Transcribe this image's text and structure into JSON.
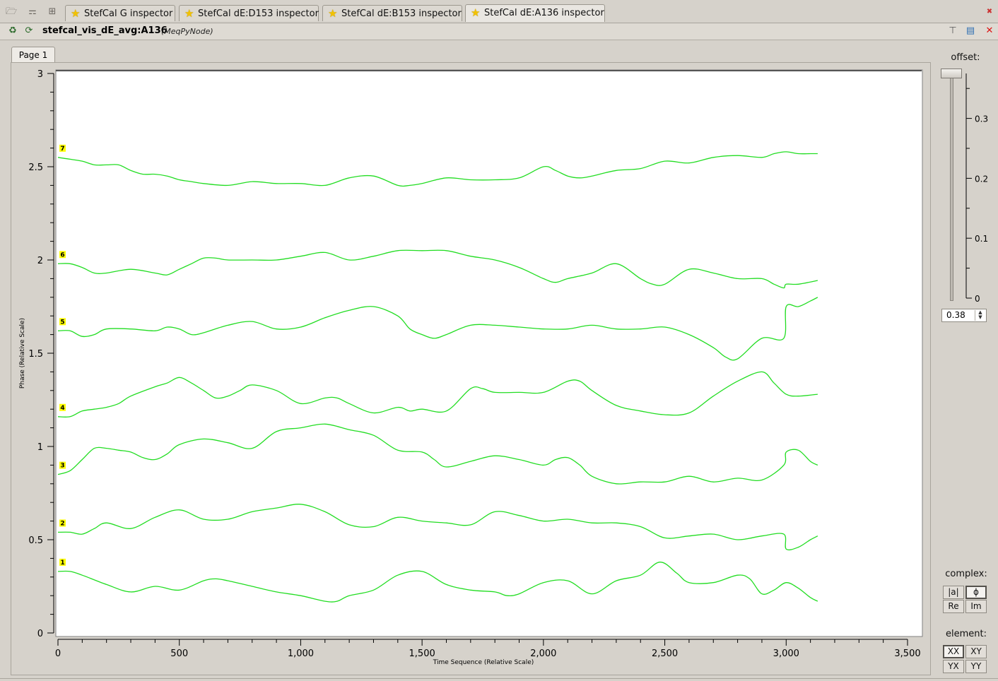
{
  "toolbar": {
    "icons": [
      "folder-icon",
      "bookmark-icon",
      "grid-icon"
    ],
    "tabs": [
      {
        "label": "StefCal G inspector",
        "icon": "star-icon"
      },
      {
        "label": "StefCal dE:D153 inspector",
        "icon": "star-icon"
      },
      {
        "label": "StefCal dE:B153 inspector",
        "icon": "star-icon"
      },
      {
        "label": "StefCal dE:A136 inspector",
        "icon": "star-icon",
        "active": true
      }
    ]
  },
  "titlebar": {
    "node_name": "stefcal_vis_dE_avg:A136",
    "node_class": "(MeqPyNode)"
  },
  "page_tab": "Page 1",
  "right_panel": {
    "offset_label": "offset:",
    "offset_value": "0.38",
    "offset_fraction": 1.0,
    "offset_ticks": [
      "0.3",
      "0.2",
      "0.1",
      "0"
    ],
    "complex_label": "complex:",
    "complex_buttons": [
      "|a|",
      "ϕ",
      "Re",
      "Im"
    ],
    "complex_selected": "ϕ",
    "element_label": "element:",
    "element_buttons": [
      "XX",
      "XY",
      "YX",
      "YY"
    ],
    "element_selected": "XX"
  },
  "chart_data": {
    "type": "line",
    "xlabel": "Time Sequence (Relative Scale)",
    "ylabel": "Phase (Relative Scale)",
    "xlim": [
      -10,
      3550
    ],
    "ylim": [
      -0.01,
      3.02
    ],
    "xticks": [
      "0",
      "500",
      "1,000",
      "1,500",
      "2,000",
      "2,500",
      "3,000",
      "3,500"
    ],
    "yticks": [
      "0",
      "0.5",
      "1",
      "1.5",
      "2",
      "2.5",
      "3"
    ],
    "grid": false,
    "line_color": "#22dd22",
    "series": [
      {
        "name": "1",
        "x": [
          0,
          50,
          100,
          200,
          300,
          400,
          500,
          600,
          650,
          700,
          800,
          900,
          1000,
          1100,
          1150,
          1200,
          1300,
          1400,
          1500,
          1600,
          1700,
          1800,
          1850,
          1900,
          2000,
          2100,
          2200,
          2300,
          2400,
          2480,
          2550,
          2600,
          2700,
          2800,
          2850,
          2900,
          2950,
          3000,
          3050,
          3100,
          3130
        ],
        "y": [
          0.33,
          0.33,
          0.31,
          0.26,
          0.22,
          0.25,
          0.23,
          0.28,
          0.29,
          0.28,
          0.25,
          0.22,
          0.2,
          0.17,
          0.17,
          0.2,
          0.23,
          0.31,
          0.33,
          0.26,
          0.23,
          0.22,
          0.2,
          0.21,
          0.27,
          0.28,
          0.21,
          0.28,
          0.31,
          0.38,
          0.32,
          0.27,
          0.27,
          0.31,
          0.29,
          0.21,
          0.23,
          0.27,
          0.24,
          0.19,
          0.17
        ]
      },
      {
        "name": "2",
        "x": [
          0,
          50,
          100,
          150,
          200,
          300,
          400,
          500,
          600,
          700,
          800,
          900,
          1000,
          1100,
          1200,
          1300,
          1400,
          1500,
          1600,
          1700,
          1800,
          1900,
          2000,
          2100,
          2200,
          2300,
          2400,
          2500,
          2600,
          2700,
          2800,
          2900,
          2990,
          3000,
          3050,
          3100,
          3130
        ],
        "y": [
          0.54,
          0.54,
          0.53,
          0.56,
          0.59,
          0.56,
          0.62,
          0.66,
          0.61,
          0.61,
          0.65,
          0.67,
          0.69,
          0.65,
          0.58,
          0.57,
          0.62,
          0.6,
          0.59,
          0.58,
          0.65,
          0.63,
          0.6,
          0.61,
          0.59,
          0.59,
          0.57,
          0.51,
          0.52,
          0.53,
          0.5,
          0.52,
          0.53,
          0.45,
          0.46,
          0.5,
          0.52
        ]
      },
      {
        "name": "3",
        "x": [
          0,
          50,
          100,
          150,
          200,
          250,
          300,
          350,
          400,
          450,
          500,
          600,
          700,
          800,
          900,
          1000,
          1100,
          1200,
          1300,
          1400,
          1500,
          1550,
          1600,
          1700,
          1800,
          1900,
          2000,
          2050,
          2100,
          2150,
          2200,
          2300,
          2400,
          2500,
          2600,
          2700,
          2800,
          2900,
          2990,
          3000,
          3050,
          3100,
          3130
        ],
        "y": [
          0.85,
          0.87,
          0.93,
          0.99,
          0.99,
          0.98,
          0.97,
          0.94,
          0.93,
          0.96,
          1.01,
          1.04,
          1.02,
          0.99,
          1.08,
          1.1,
          1.12,
          1.09,
          1.06,
          0.98,
          0.97,
          0.93,
          0.89,
          0.92,
          0.95,
          0.93,
          0.9,
          0.93,
          0.94,
          0.9,
          0.84,
          0.8,
          0.81,
          0.81,
          0.84,
          0.81,
          0.83,
          0.82,
          0.9,
          0.97,
          0.98,
          0.92,
          0.9
        ]
      },
      {
        "name": "4",
        "x": [
          0,
          50,
          100,
          150,
          200,
          250,
          300,
          400,
          450,
          500,
          550,
          600,
          650,
          700,
          750,
          800,
          900,
          1000,
          1100,
          1150,
          1200,
          1300,
          1400,
          1450,
          1500,
          1600,
          1700,
          1750,
          1800,
          1900,
          2000,
          2100,
          2150,
          2200,
          2300,
          2400,
          2500,
          2600,
          2700,
          2800,
          2900,
          2950,
          3000,
          3050,
          3130
        ],
        "y": [
          1.16,
          1.16,
          1.19,
          1.2,
          1.21,
          1.23,
          1.27,
          1.32,
          1.34,
          1.37,
          1.34,
          1.3,
          1.26,
          1.27,
          1.3,
          1.33,
          1.3,
          1.23,
          1.26,
          1.26,
          1.23,
          1.18,
          1.21,
          1.19,
          1.2,
          1.19,
          1.31,
          1.31,
          1.29,
          1.29,
          1.29,
          1.35,
          1.35,
          1.3,
          1.22,
          1.19,
          1.17,
          1.18,
          1.27,
          1.35,
          1.4,
          1.34,
          1.28,
          1.27,
          1.28
        ]
      },
      {
        "name": "5",
        "x": [
          0,
          50,
          100,
          150,
          200,
          300,
          400,
          450,
          500,
          550,
          600,
          700,
          800,
          900,
          1000,
          1100,
          1200,
          1300,
          1400,
          1450,
          1500,
          1550,
          1600,
          1700,
          1800,
          1900,
          2000,
          2100,
          2200,
          2300,
          2400,
          2500,
          2600,
          2700,
          2750,
          2800,
          2900,
          2990,
          3000,
          3050,
          3100,
          3130
        ],
        "y": [
          1.62,
          1.62,
          1.59,
          1.6,
          1.63,
          1.63,
          1.62,
          1.64,
          1.63,
          1.6,
          1.61,
          1.65,
          1.67,
          1.63,
          1.64,
          1.69,
          1.73,
          1.75,
          1.7,
          1.63,
          1.6,
          1.58,
          1.6,
          1.65,
          1.65,
          1.64,
          1.63,
          1.63,
          1.65,
          1.63,
          1.63,
          1.64,
          1.6,
          1.53,
          1.48,
          1.47,
          1.58,
          1.58,
          1.75,
          1.75,
          1.78,
          1.8
        ]
      },
      {
        "name": "6",
        "x": [
          0,
          50,
          100,
          150,
          200,
          300,
          400,
          450,
          500,
          550,
          600,
          650,
          700,
          800,
          900,
          1000,
          1100,
          1200,
          1300,
          1400,
          1500,
          1600,
          1700,
          1800,
          1900,
          2000,
          2050,
          2100,
          2200,
          2300,
          2400,
          2450,
          2500,
          2600,
          2700,
          2800,
          2900,
          2950,
          2990,
          3000,
          3050,
          3130
        ],
        "y": [
          1.98,
          1.98,
          1.96,
          1.93,
          1.93,
          1.95,
          1.93,
          1.92,
          1.95,
          1.98,
          2.01,
          2.01,
          2.0,
          2.0,
          2.0,
          2.02,
          2.04,
          2.0,
          2.02,
          2.05,
          2.05,
          2.05,
          2.02,
          2.0,
          1.96,
          1.9,
          1.88,
          1.9,
          1.93,
          1.98,
          1.9,
          1.87,
          1.87,
          1.95,
          1.93,
          1.9,
          1.9,
          1.87,
          1.85,
          1.87,
          1.87,
          1.89
        ]
      },
      {
        "name": "7",
        "x": [
          0,
          50,
          100,
          150,
          200,
          250,
          300,
          350,
          400,
          450,
          500,
          550,
          600,
          700,
          800,
          900,
          1000,
          1100,
          1200,
          1300,
          1400,
          1450,
          1500,
          1600,
          1700,
          1800,
          1900,
          2000,
          2050,
          2100,
          2150,
          2200,
          2300,
          2400,
          2500,
          2600,
          2700,
          2800,
          2900,
          2950,
          3000,
          3050,
          3100,
          3130
        ],
        "y": [
          2.55,
          2.54,
          2.53,
          2.51,
          2.51,
          2.51,
          2.48,
          2.46,
          2.46,
          2.45,
          2.43,
          2.42,
          2.41,
          2.4,
          2.42,
          2.41,
          2.41,
          2.4,
          2.44,
          2.45,
          2.4,
          2.4,
          2.41,
          2.44,
          2.43,
          2.43,
          2.44,
          2.5,
          2.48,
          2.45,
          2.44,
          2.45,
          2.48,
          2.49,
          2.53,
          2.52,
          2.55,
          2.56,
          2.55,
          2.57,
          2.58,
          2.57,
          2.57,
          2.57
        ]
      }
    ]
  }
}
